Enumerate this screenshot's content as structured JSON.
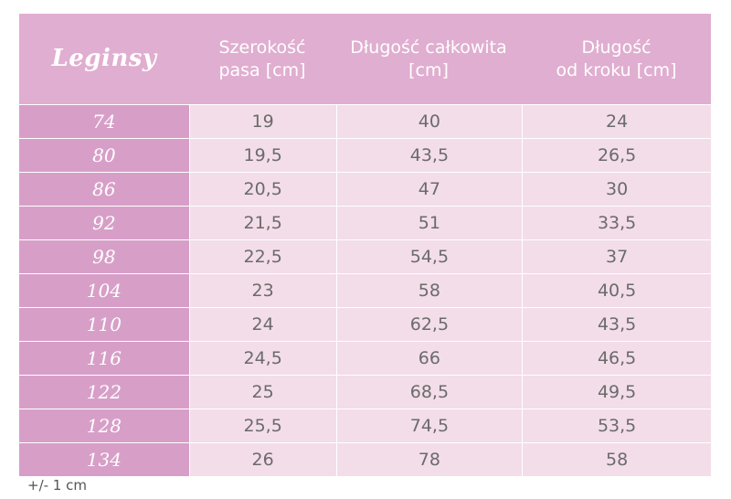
{
  "table": {
    "title": "Leginsy",
    "columns": [
      "Szerokość\npasa [cm]",
      "Długość całkowita\n[cm]",
      "Długość\nod kroku [cm]"
    ],
    "rows": [
      {
        "size": "74",
        "waist": "19",
        "total": "40",
        "inseam": "24"
      },
      {
        "size": "80",
        "waist": "19,5",
        "total": "43,5",
        "inseam": "26,5"
      },
      {
        "size": "86",
        "waist": "20,5",
        "total": "47",
        "inseam": "30"
      },
      {
        "size": "92",
        "waist": "21,5",
        "total": "51",
        "inseam": "33,5"
      },
      {
        "size": "98",
        "waist": "22,5",
        "total": "54,5",
        "inseam": "37"
      },
      {
        "size": "104",
        "waist": "23",
        "total": "58",
        "inseam": "40,5"
      },
      {
        "size": "110",
        "waist": "24",
        "total": "62,5",
        "inseam": "43,5"
      },
      {
        "size": "116",
        "waist": "24,5",
        "total": "66",
        "inseam": "46,5"
      },
      {
        "size": "122",
        "waist": "25",
        "total": "68,5",
        "inseam": "49,5"
      },
      {
        "size": "128",
        "waist": "25,5",
        "total": "74,5",
        "inseam": "53,5"
      },
      {
        "size": "134",
        "waist": "26",
        "total": "78",
        "inseam": "58"
      }
    ]
  },
  "footnote": "+/- 1 cm",
  "colors": {
    "header_bg": "#e0aed0",
    "size_col_bg": "#d79fc8",
    "cell_bg": "#f3dde9",
    "value_text": "#6b6b6b"
  }
}
